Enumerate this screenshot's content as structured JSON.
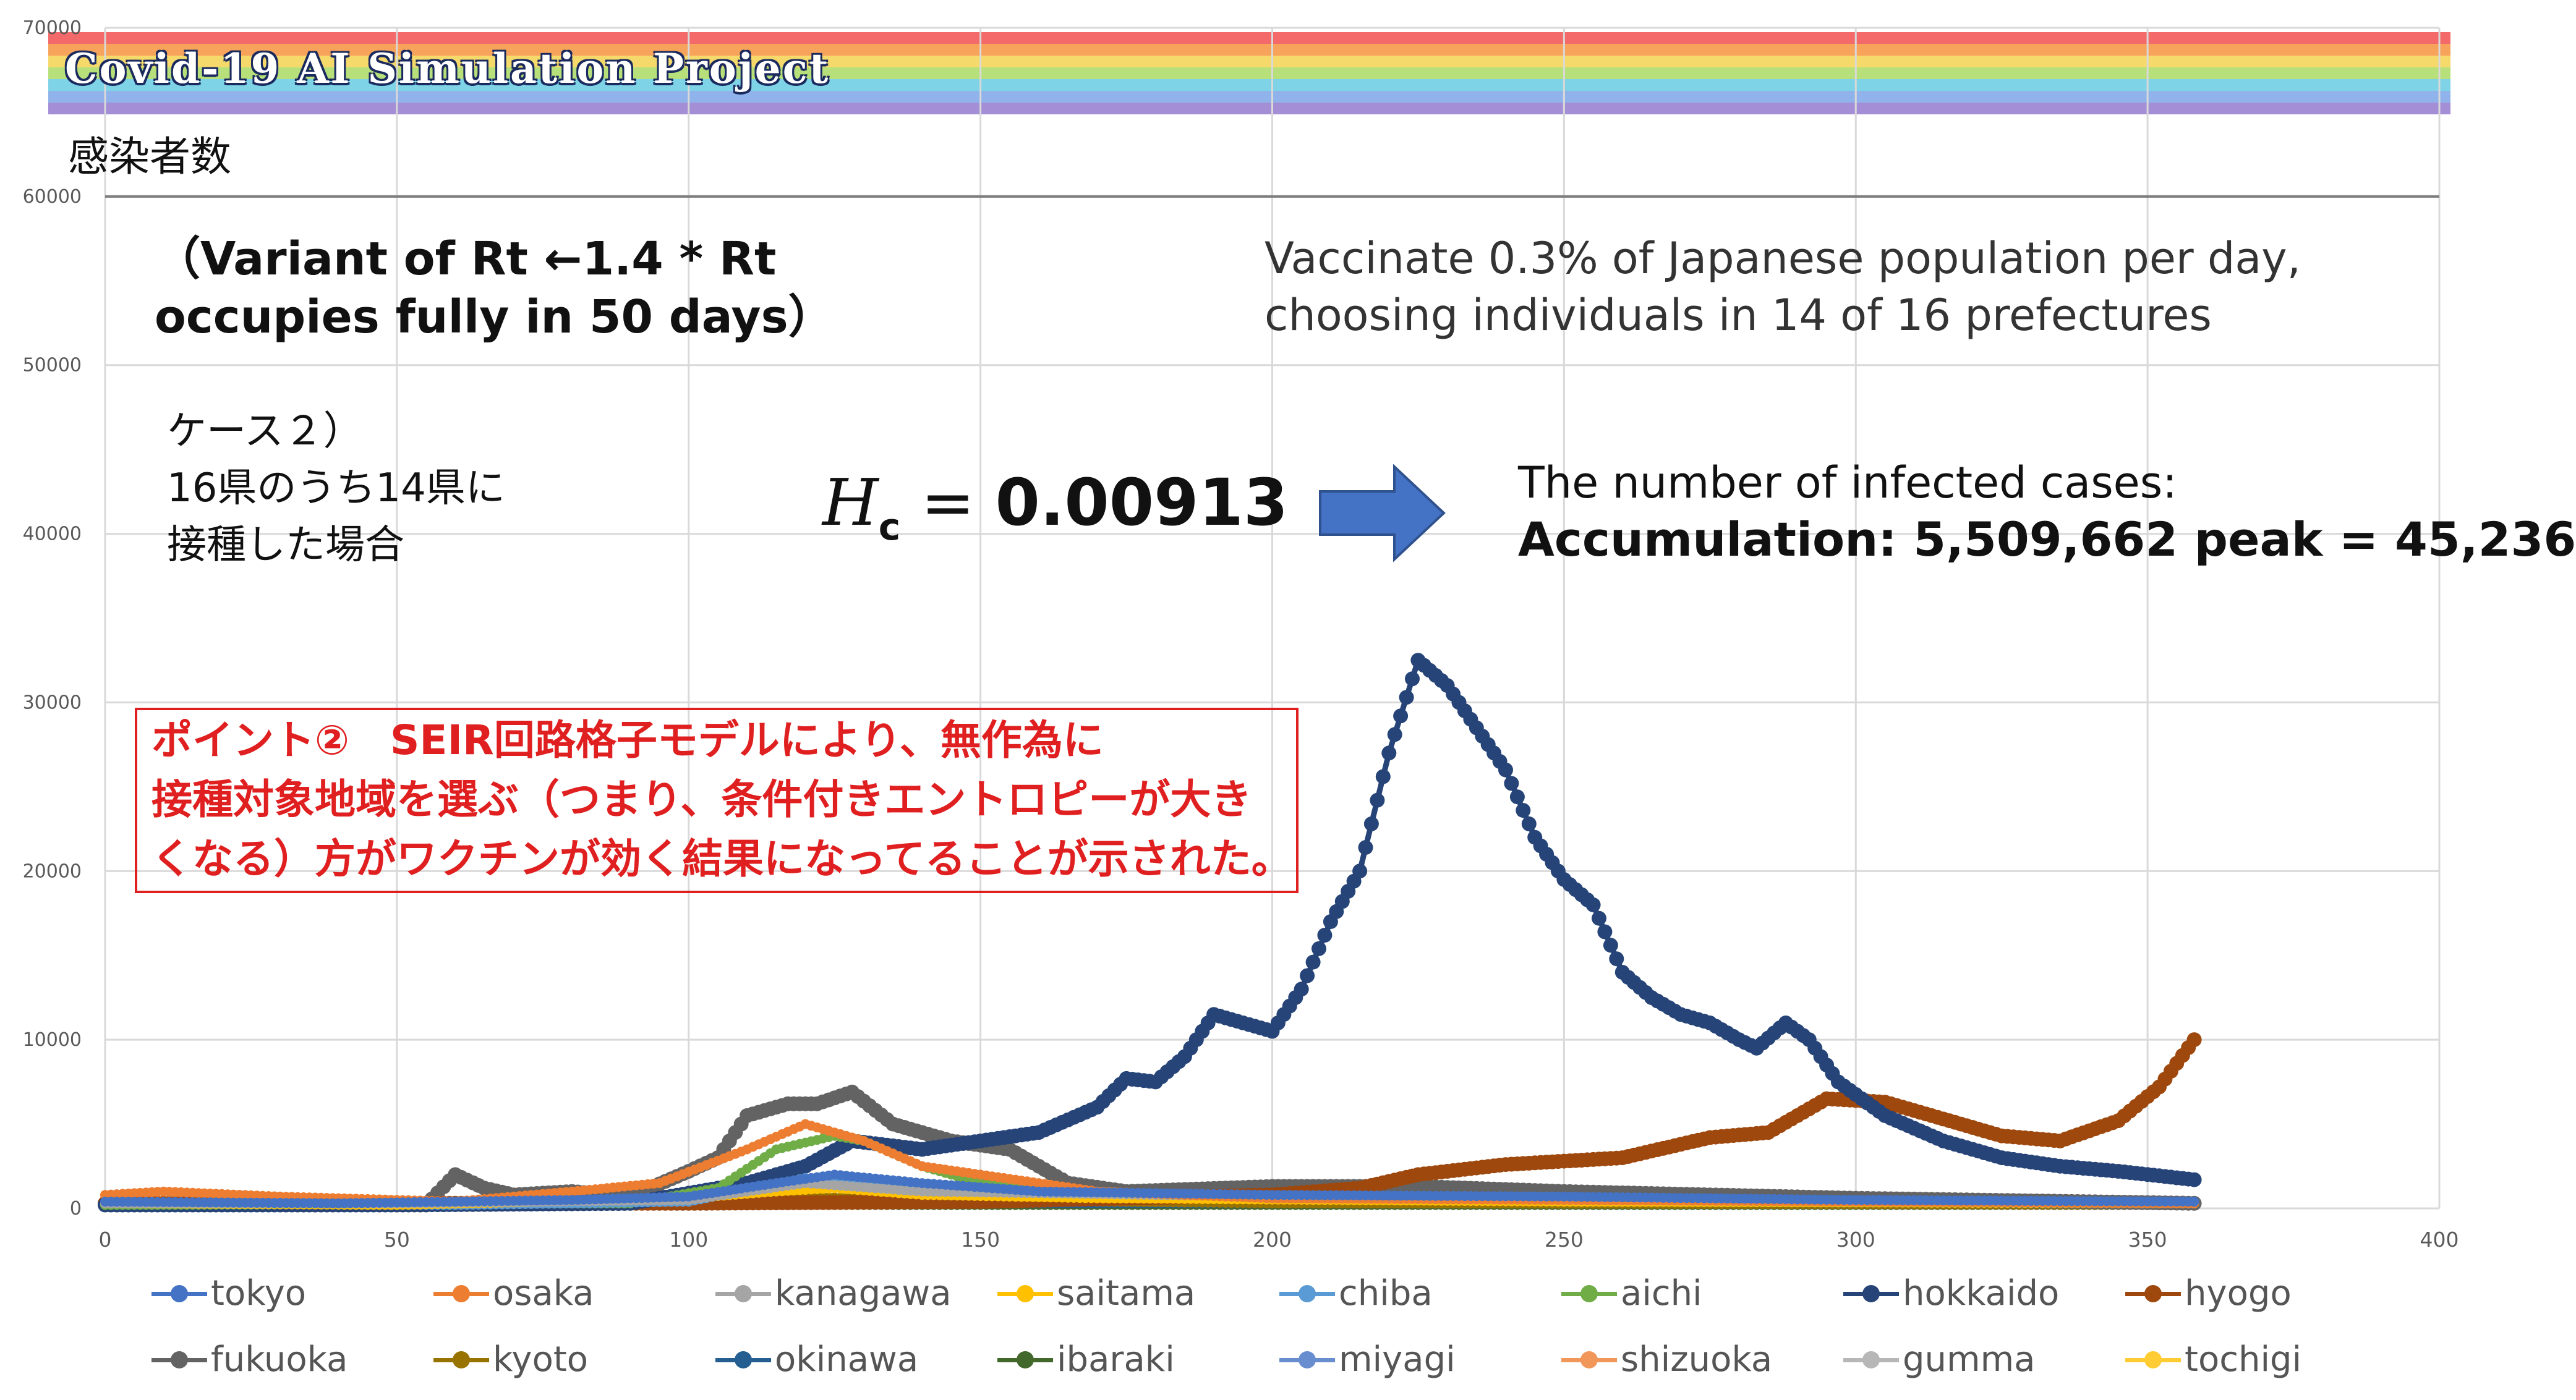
{
  "banner": {
    "title": "Covid-19 AI Simulation Project",
    "stripe_colors": [
      "#f46a6a",
      "#f7a35c",
      "#f6d96b",
      "#b7e07a",
      "#7fd3e6",
      "#8fb3ea",
      "#a48fd6"
    ]
  },
  "annotations": {
    "y_label_jp": "感染者数",
    "variant_line1": "（Variant of Rt ←1.4 * Rt",
    "variant_line2": "occupies fully in 50 days）",
    "vaccinate_line1": "Vaccinate 0.3% of Japanese population per day,",
    "vaccinate_line2": "choosing individuals in 14 of 16 prefectures",
    "case_line1": "ケース２）",
    "case_line2": "16県のうち14県に",
    "case_line3": "接種した場合",
    "hc_symbol": "H",
    "hc_sub": "c",
    "hc_eq": " = ",
    "hc_value": "0.00913",
    "infected_line1": "The number of infected cases:",
    "infected_line2": "Accumulation: 5,509,662 peak = 45,236",
    "point_line1": "ポイント②　SEIR回路格子モデルにより、無作為に",
    "point_line2": "接種対象地域を選ぶ（つまり、条件付きエントロピーが大き",
    "point_line3": "くなる）方がワクチンが効く結果になってることが示された。",
    "arrow_color": "#4472c4"
  },
  "chart_data": {
    "type": "line",
    "title": "",
    "xlabel": "",
    "ylabel": "感染者数",
    "xlim": [
      0,
      400
    ],
    "ylim": [
      0,
      70000
    ],
    "x_ticks": [
      0,
      50,
      100,
      150,
      200,
      250,
      300,
      350,
      400
    ],
    "y_ticks": [
      0,
      10000,
      20000,
      30000,
      40000,
      50000,
      60000,
      70000
    ],
    "x_tick_labels": [
      "0",
      "50",
      "100",
      "150",
      "200",
      "250",
      "300",
      "350",
      "400"
    ],
    "y_tick_labels": [
      "0",
      "10000",
      "20000",
      "30000",
      "40000",
      "50000",
      "60000",
      "70000"
    ],
    "grid": true,
    "legend_position": "bottom",
    "series": [
      {
        "name": "tokyo",
        "color": "#4472c4",
        "points": [
          [
            0,
            400
          ],
          [
            40,
            300
          ],
          [
            80,
            500
          ],
          [
            100,
            700
          ],
          [
            115,
            1500
          ],
          [
            125,
            2000
          ],
          [
            140,
            1500
          ],
          [
            160,
            1000
          ],
          [
            200,
            800
          ],
          [
            250,
            700
          ],
          [
            300,
            500
          ],
          [
            358,
            400
          ]
        ]
      },
      {
        "name": "osaka",
        "color": "#ed7d31",
        "points": [
          [
            0,
            800
          ],
          [
            10,
            1000
          ],
          [
            30,
            700
          ],
          [
            60,
            400
          ],
          [
            80,
            1000
          ],
          [
            95,
            1500
          ],
          [
            110,
            3500
          ],
          [
            120,
            5000
          ],
          [
            130,
            4000
          ],
          [
            140,
            2500
          ],
          [
            150,
            2000
          ],
          [
            170,
            1000
          ],
          [
            200,
            600
          ],
          [
            250,
            500
          ],
          [
            358,
            300
          ]
        ]
      },
      {
        "name": "kanagawa",
        "color": "#a5a5a5",
        "points": [
          [
            0,
            300
          ],
          [
            50,
            300
          ],
          [
            100,
            500
          ],
          [
            120,
            1500
          ],
          [
            140,
            1000
          ],
          [
            200,
            700
          ],
          [
            250,
            500
          ],
          [
            358,
            300
          ]
        ]
      },
      {
        "name": "saitama",
        "color": "#ffc000",
        "points": [
          [
            0,
            300
          ],
          [
            50,
            200
          ],
          [
            100,
            600
          ],
          [
            115,
            1000
          ],
          [
            125,
            1200
          ],
          [
            140,
            800
          ],
          [
            170,
            600
          ],
          [
            250,
            400
          ],
          [
            358,
            300
          ]
        ]
      },
      {
        "name": "chiba",
        "color": "#5b9bd5",
        "points": [
          [
            0,
            300
          ],
          [
            60,
            200
          ],
          [
            100,
            400
          ],
          [
            120,
            1800
          ],
          [
            135,
            1200
          ],
          [
            160,
            700
          ],
          [
            250,
            400
          ],
          [
            358,
            300
          ]
        ]
      },
      {
        "name": "aichi",
        "color": "#70ad47",
        "points": [
          [
            0,
            200
          ],
          [
            90,
            300
          ],
          [
            105,
            1200
          ],
          [
            115,
            3500
          ],
          [
            125,
            4300
          ],
          [
            130,
            4000
          ],
          [
            140,
            2500
          ],
          [
            150,
            1500
          ],
          [
            170,
            800
          ],
          [
            250,
            400
          ],
          [
            358,
            300
          ]
        ]
      },
      {
        "name": "hokkaido",
        "color": "#264478",
        "points": [
          [
            0,
            200
          ],
          [
            50,
            200
          ],
          [
            90,
            300
          ],
          [
            110,
            1500
          ],
          [
            120,
            2500
          ],
          [
            128,
            4000
          ],
          [
            140,
            3500
          ],
          [
            150,
            4000
          ],
          [
            160,
            4500
          ],
          [
            170,
            6000
          ],
          [
            175,
            7700
          ],
          [
            180,
            7500
          ],
          [
            185,
            9000
          ],
          [
            190,
            11500
          ],
          [
            195,
            11000
          ],
          [
            200,
            10500
          ],
          [
            205,
            13000
          ],
          [
            210,
            17000
          ],
          [
            215,
            20000
          ],
          [
            220,
            27000
          ],
          [
            225,
            32500
          ],
          [
            230,
            31000
          ],
          [
            235,
            28500
          ],
          [
            240,
            26000
          ],
          [
            245,
            22000
          ],
          [
            250,
            19500
          ],
          [
            255,
            18000
          ],
          [
            260,
            14000
          ],
          [
            265,
            12500
          ],
          [
            270,
            11500
          ],
          [
            275,
            11000
          ],
          [
            280,
            10000
          ],
          [
            283,
            9500
          ],
          [
            288,
            11000
          ],
          [
            292,
            10000
          ],
          [
            297,
            7500
          ],
          [
            305,
            5500
          ],
          [
            315,
            4000
          ],
          [
            325,
            3000
          ],
          [
            335,
            2500
          ],
          [
            345,
            2200
          ],
          [
            358,
            1700
          ]
        ]
      },
      {
        "name": "hyogo",
        "color": "#9e480e",
        "points": [
          [
            0,
            300
          ],
          [
            50,
            300
          ],
          [
            100,
            300
          ],
          [
            150,
            400
          ],
          [
            200,
            800
          ],
          [
            215,
            1200
          ],
          [
            225,
            2000
          ],
          [
            240,
            2600
          ],
          [
            260,
            3000
          ],
          [
            275,
            4200
          ],
          [
            285,
            4500
          ],
          [
            295,
            6500
          ],
          [
            305,
            6300
          ],
          [
            315,
            5300
          ],
          [
            325,
            4300
          ],
          [
            335,
            4000
          ],
          [
            345,
            5200
          ],
          [
            352,
            7200
          ],
          [
            358,
            10000
          ]
        ]
      },
      {
        "name": "fukuoka",
        "color": "#636363",
        "points": [
          [
            0,
            300
          ],
          [
            55,
            200
          ],
          [
            60,
            2000
          ],
          [
            65,
            1200
          ],
          [
            70,
            800
          ],
          [
            80,
            1000
          ],
          [
            90,
            700
          ],
          [
            100,
            2200
          ],
          [
            105,
            3000
          ],
          [
            110,
            5500
          ],
          [
            117,
            6200
          ],
          [
            122,
            6200
          ],
          [
            128,
            6900
          ],
          [
            135,
            5000
          ],
          [
            145,
            4000
          ],
          [
            155,
            3500
          ],
          [
            165,
            1500
          ],
          [
            175,
            1000
          ],
          [
            200,
            1300
          ],
          [
            225,
            1300
          ],
          [
            250,
            1000
          ],
          [
            275,
            800
          ],
          [
            300,
            600
          ],
          [
            358,
            300
          ]
        ]
      },
      {
        "name": "kyoto",
        "color": "#997300",
        "points": [
          [
            0,
            200
          ],
          [
            100,
            300
          ],
          [
            120,
            700
          ],
          [
            140,
            500
          ],
          [
            200,
            300
          ],
          [
            358,
            200
          ]
        ]
      },
      {
        "name": "okinawa",
        "color": "#255e91",
        "points": [
          [
            0,
            200
          ],
          [
            100,
            200
          ],
          [
            150,
            300
          ],
          [
            200,
            300
          ],
          [
            358,
            200
          ]
        ]
      },
      {
        "name": "ibaraki",
        "color": "#43682b",
        "points": [
          [
            0,
            200
          ],
          [
            100,
            200
          ],
          [
            200,
            200
          ],
          [
            358,
            200
          ]
        ]
      },
      {
        "name": "miyagi",
        "color": "#698ed0",
        "points": [
          [
            0,
            200
          ],
          [
            100,
            250
          ],
          [
            200,
            250
          ],
          [
            358,
            200
          ]
        ]
      },
      {
        "name": "shizuoka",
        "color": "#f1975a",
        "points": [
          [
            0,
            200
          ],
          [
            100,
            300
          ],
          [
            200,
            250
          ],
          [
            358,
            200
          ]
        ]
      },
      {
        "name": "gumma",
        "color": "#b7b7b7",
        "points": [
          [
            0,
            200
          ],
          [
            100,
            250
          ],
          [
            200,
            250
          ],
          [
            358,
            200
          ]
        ]
      },
      {
        "name": "tochigi",
        "color": "#ffcd33",
        "points": [
          [
            0,
            200
          ],
          [
            100,
            300
          ],
          [
            200,
            250
          ],
          [
            358,
            300
          ]
        ]
      }
    ]
  }
}
